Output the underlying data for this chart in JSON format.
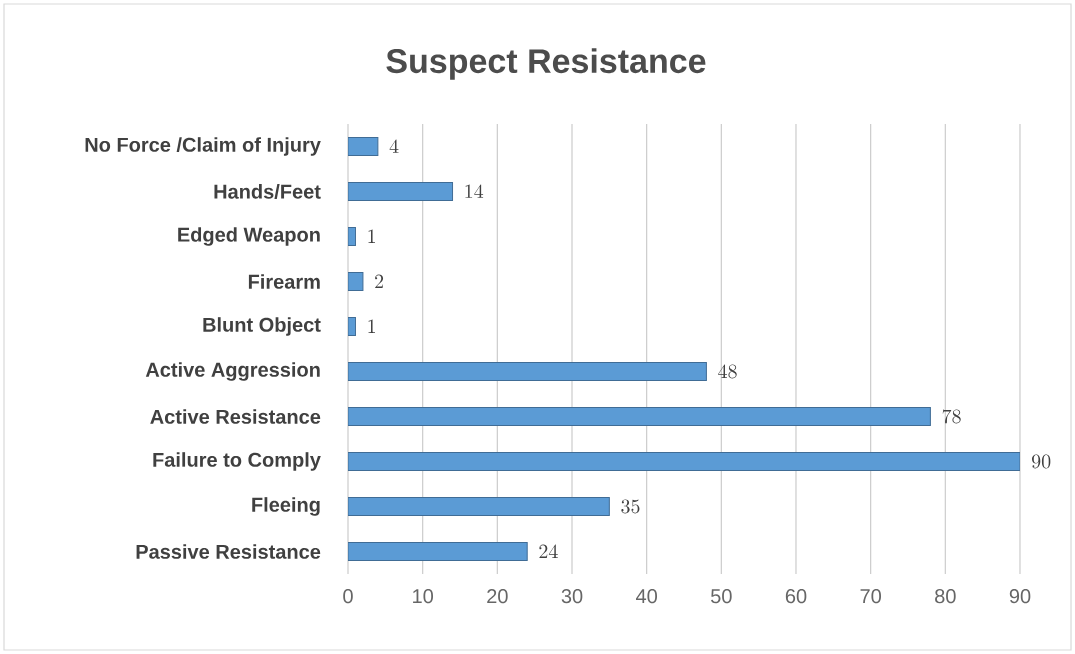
{
  "chart_data": {
    "type": "bar",
    "orientation": "horizontal",
    "title": "Suspect Resistance",
    "categories": [
      "No Force /Claim of Injury",
      "Hands/Feet",
      "Edged Weapon",
      "Firearm",
      "Blunt Object",
      "Active Aggression",
      "Active Resistance",
      "Failure to Comply",
      "Fleeing",
      "Passive Resistance"
    ],
    "values": [
      4,
      14,
      1,
      2,
      1,
      48,
      78,
      90,
      35,
      24
    ],
    "color": "#5b9bd5",
    "xlim": [
      0,
      90
    ],
    "xticks": [
      0,
      10,
      20,
      30,
      40,
      50,
      60,
      70,
      80,
      90
    ],
    "grid": "x",
    "data_labels": true
  }
}
